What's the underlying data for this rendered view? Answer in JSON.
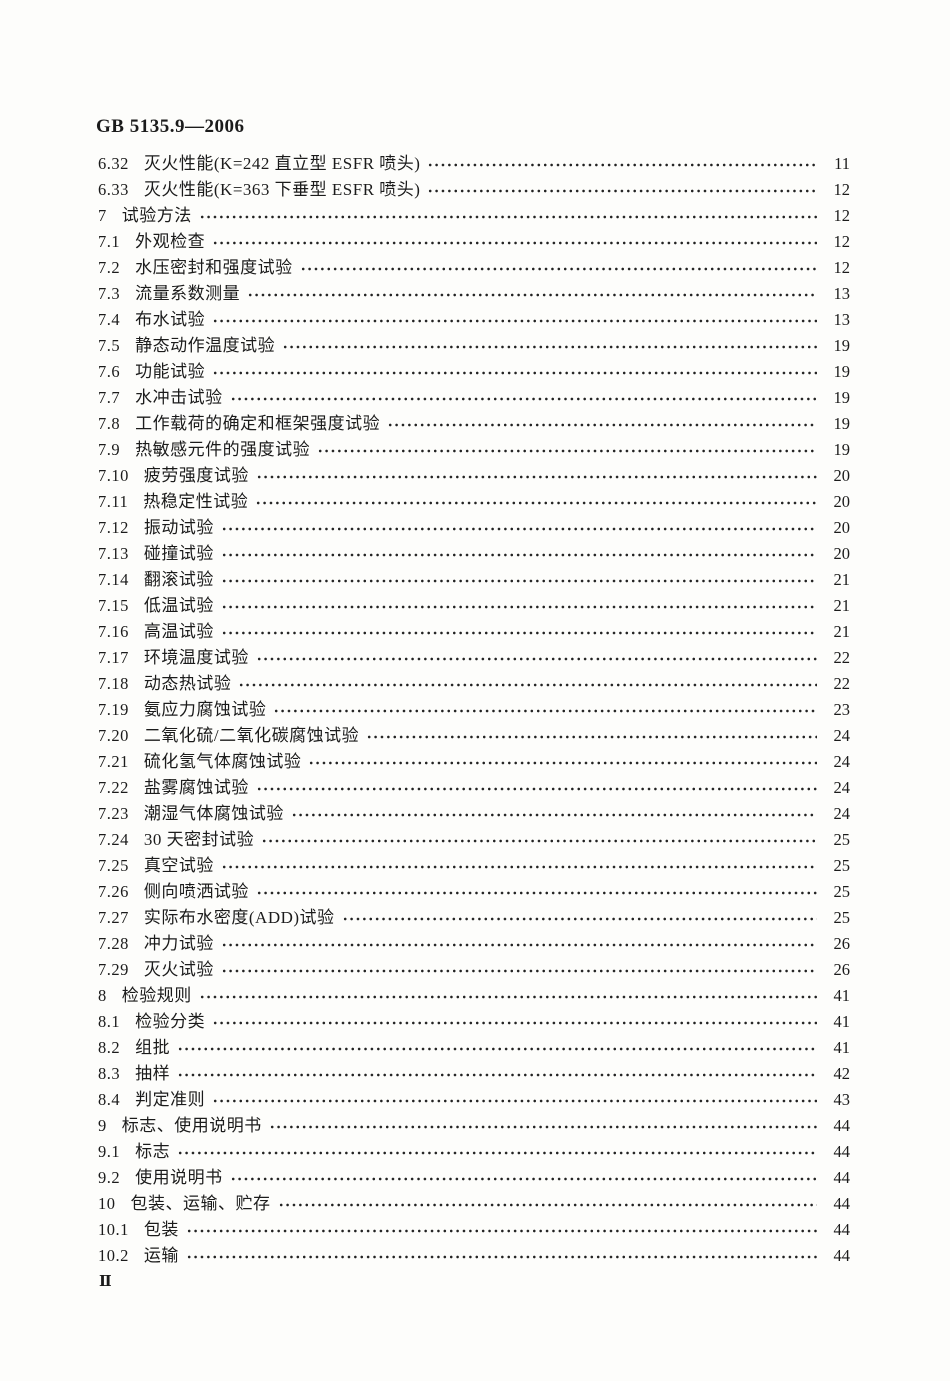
{
  "document": {
    "header_code": "GB 5135.9—2006",
    "footer_page_number": "Ⅱ"
  },
  "toc": {
    "entries": [
      {
        "num": "6.32",
        "title": "灭火性能(K=242 直立型 ESFR 喷头)",
        "page": "11"
      },
      {
        "num": "6.33",
        "title": "灭火性能(K=363 下垂型 ESFR 喷头)",
        "page": "12"
      },
      {
        "num": "7",
        "title": "试验方法",
        "page": "12"
      },
      {
        "num": "7.1",
        "title": "外观检查",
        "page": "12"
      },
      {
        "num": "7.2",
        "title": "水压密封和强度试验",
        "page": "12"
      },
      {
        "num": "7.3",
        "title": "流量系数测量",
        "page": "13"
      },
      {
        "num": "7.4",
        "title": "布水试验",
        "page": "13"
      },
      {
        "num": "7.5",
        "title": "静态动作温度试验",
        "page": "19"
      },
      {
        "num": "7.6",
        "title": "功能试验",
        "page": "19"
      },
      {
        "num": "7.7",
        "title": "水冲击试验",
        "page": "19"
      },
      {
        "num": "7.8",
        "title": "工作载荷的确定和框架强度试验",
        "page": "19"
      },
      {
        "num": "7.9",
        "title": "热敏感元件的强度试验",
        "page": "19"
      },
      {
        "num": "7.10",
        "title": "疲劳强度试验",
        "page": "20"
      },
      {
        "num": "7.11",
        "title": "热稳定性试验",
        "page": "20"
      },
      {
        "num": "7.12",
        "title": "振动试验",
        "page": "20"
      },
      {
        "num": "7.13",
        "title": "碰撞试验",
        "page": "20"
      },
      {
        "num": "7.14",
        "title": "翻滚试验",
        "page": "21"
      },
      {
        "num": "7.15",
        "title": "低温试验",
        "page": "21"
      },
      {
        "num": "7.16",
        "title": "高温试验",
        "page": "21"
      },
      {
        "num": "7.17",
        "title": "环境温度试验",
        "page": "22"
      },
      {
        "num": "7.18",
        "title": "动态热试验",
        "page": "22"
      },
      {
        "num": "7.19",
        "title": "氨应力腐蚀试验",
        "page": "23"
      },
      {
        "num": "7.20",
        "title": "二氧化硫/二氧化碳腐蚀试验",
        "page": "24"
      },
      {
        "num": "7.21",
        "title": "硫化氢气体腐蚀试验",
        "page": "24"
      },
      {
        "num": "7.22",
        "title": "盐雾腐蚀试验",
        "page": "24"
      },
      {
        "num": "7.23",
        "title": "潮湿气体腐蚀试验",
        "page": "24"
      },
      {
        "num": "7.24",
        "title": "30 天密封试验",
        "page": "25"
      },
      {
        "num": "7.25",
        "title": "真空试验",
        "page": "25"
      },
      {
        "num": "7.26",
        "title": "侧向喷洒试验",
        "page": "25"
      },
      {
        "num": "7.27",
        "title": "实际布水密度(ADD)试验",
        "page": "25"
      },
      {
        "num": "7.28",
        "title": "冲力试验",
        "page": "26"
      },
      {
        "num": "7.29",
        "title": "灭火试验",
        "page": "26"
      },
      {
        "num": "8",
        "title": "检验规则",
        "page": "41"
      },
      {
        "num": "8.1",
        "title": "检验分类",
        "page": "41"
      },
      {
        "num": "8.2",
        "title": "组批",
        "page": "41"
      },
      {
        "num": "8.3",
        "title": "抽样",
        "page": "42"
      },
      {
        "num": "8.4",
        "title": "判定准则",
        "page": "43"
      },
      {
        "num": "9",
        "title": "标志、使用说明书",
        "page": "44"
      },
      {
        "num": "9.1",
        "title": "标志",
        "page": "44"
      },
      {
        "num": "9.2",
        "title": "使用说明书",
        "page": "44"
      },
      {
        "num": "10",
        "title": "包装、运输、贮存",
        "page": "44"
      },
      {
        "num": "10.1",
        "title": "包装",
        "page": "44"
      },
      {
        "num": "10.2",
        "title": "运输",
        "page": "44"
      }
    ]
  }
}
